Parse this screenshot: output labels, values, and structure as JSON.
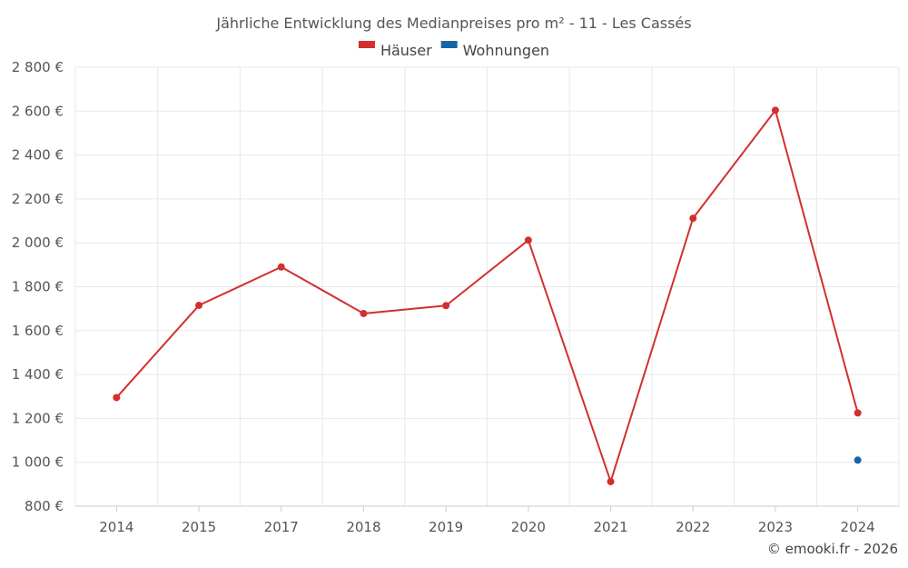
{
  "chart_data": {
    "type": "line",
    "title": "Jährliche Entwicklung des Medianpreises pro m² - 11 - Les Cassés",
    "xlabel": "",
    "ylabel": "",
    "categories": [
      "2014",
      "2015",
      "2017",
      "2018",
      "2019",
      "2020",
      "2021",
      "2022",
      "2023",
      "2024"
    ],
    "ylim": [
      800,
      2800
    ],
    "yticks": [
      800,
      1000,
      1200,
      1400,
      1600,
      1800,
      2000,
      2200,
      2400,
      2600,
      2800
    ],
    "ytick_labels": [
      "800 €",
      "1 000 €",
      "1 200 €",
      "1 400 €",
      "1 600 €",
      "1 800 €",
      "2 000 €",
      "2 200 €",
      "2 400 €",
      "2 600 €",
      "2 800 €"
    ],
    "grid": true,
    "legend_position": "top-center",
    "series": [
      {
        "name": "Häuser",
        "color": "#d32f2f",
        "values": [
          1295,
          1715,
          1890,
          1678,
          1714,
          2012,
          912,
          2112,
          2604,
          1225
        ]
      },
      {
        "name": "Wohnungen",
        "color": "#1565a6",
        "values": [
          null,
          null,
          null,
          null,
          null,
          null,
          null,
          null,
          null,
          1010
        ]
      }
    ]
  },
  "credit": "© emooki.fr - 2026"
}
